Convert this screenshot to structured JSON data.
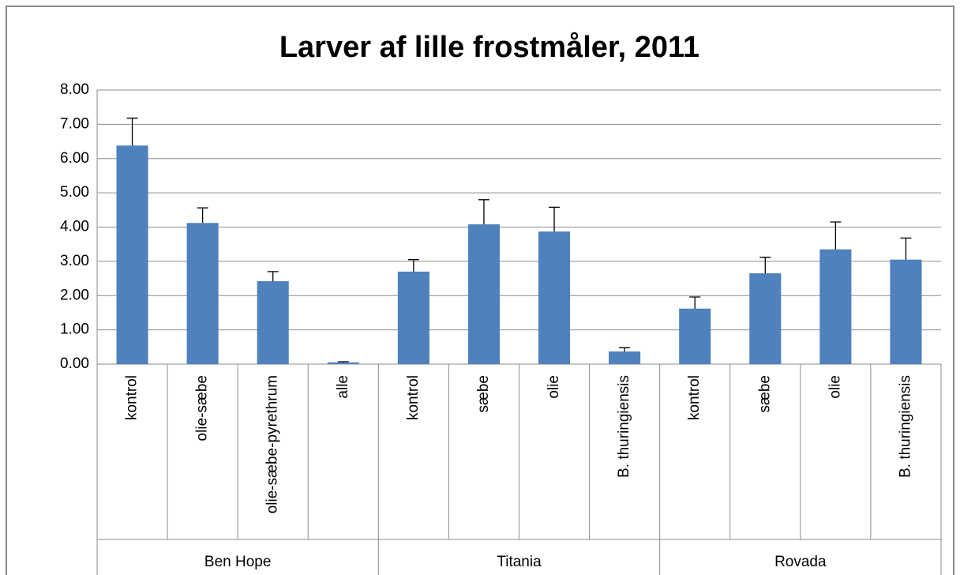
{
  "chart_data": {
    "type": "bar",
    "title": "Larver af lille frostmåler, 2011",
    "groups": [
      {
        "name": "Ben Hope",
        "categories": [
          "kontrol",
          "olie-sæbe",
          "olie-sæbe-pyrethrum",
          "alle"
        ]
      },
      {
        "name": "Titania",
        "categories": [
          "kontrol",
          "sæbe",
          "olie",
          "B. thuringiensis"
        ]
      },
      {
        "name": "Rovada",
        "categories": [
          "kontrol",
          "sæbe",
          "olie",
          "B. thuringiensis"
        ]
      }
    ],
    "values": [
      6.38,
      4.12,
      2.42,
      0.05,
      2.7,
      4.08,
      3.87,
      0.37,
      1.62,
      2.65,
      3.35,
      3.05
    ],
    "errors": [
      0.8,
      0.44,
      0.28,
      0.02,
      0.35,
      0.72,
      0.71,
      0.11,
      0.34,
      0.47,
      0.8,
      0.63
    ],
    "color": "#4f81bd",
    "ylim": [
      0,
      8
    ],
    "yticks": [
      {
        "value": 0,
        "label": "0.00"
      },
      {
        "value": 1,
        "label": "1.00"
      },
      {
        "value": 2,
        "label": "2.00"
      },
      {
        "value": 3,
        "label": "3.00"
      },
      {
        "value": 4,
        "label": "4.00"
      },
      {
        "value": 5,
        "label": "5.00"
      },
      {
        "value": 6,
        "label": "6.00"
      },
      {
        "value": 7,
        "label": "7.00"
      },
      {
        "value": 8,
        "label": "8.00"
      }
    ],
    "grid": true
  }
}
